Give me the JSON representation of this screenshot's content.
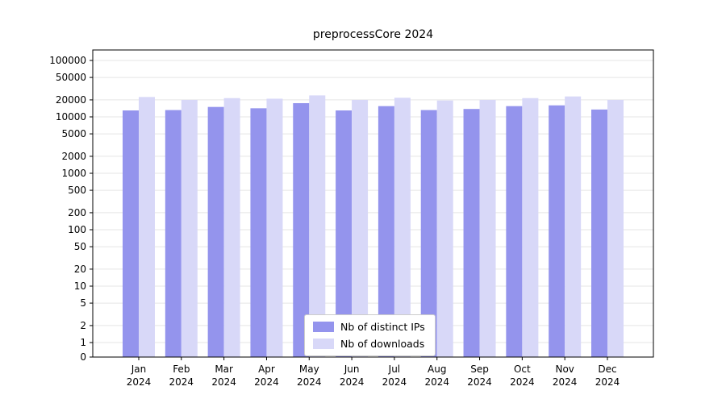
{
  "chart_data": {
    "type": "bar",
    "title": "preprocessCore 2024",
    "year_label": "2024",
    "categories": [
      "Jan",
      "Feb",
      "Mar",
      "Apr",
      "May",
      "Jun",
      "Jul",
      "Aug",
      "Sep",
      "Oct",
      "Nov",
      "Dec"
    ],
    "series": [
      {
        "name": "Nb of distinct IPs",
        "color": "#9494ed",
        "values": [
          13000,
          13200,
          15000,
          14200,
          17500,
          13000,
          15500,
          13200,
          13800,
          15500,
          16000,
          13500
        ]
      },
      {
        "name": "Nb of downloads",
        "color": "#d8d8f8",
        "values": [
          22500,
          20000,
          21500,
          21000,
          24000,
          20000,
          21800,
          19500,
          20000,
          21500,
          23000,
          20000
        ]
      }
    ],
    "y_scale": "symlog",
    "y_ticks": [
      100000,
      50000,
      20000,
      10000,
      5000,
      2000,
      1000,
      500,
      200,
      100,
      50,
      20,
      10,
      5,
      2,
      1,
      0
    ],
    "ylim": [
      0,
      150000
    ],
    "grid": "horizontal",
    "grid_color": "#e5e5e5",
    "legend_position": "lower center",
    "axis_color": "#000000",
    "background": "#ffffff"
  }
}
